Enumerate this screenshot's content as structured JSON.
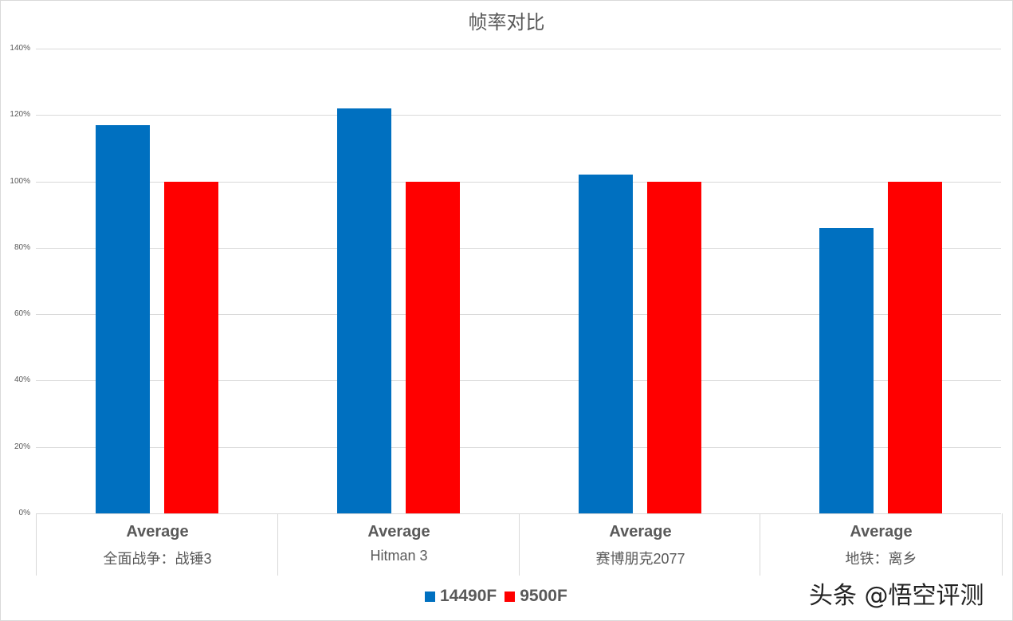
{
  "chart_data": {
    "type": "bar",
    "title": "帧率对比",
    "categories": [
      {
        "line1": "Average",
        "line2": "全面战争：战锤3"
      },
      {
        "line1": "Average",
        "line2": "Hitman 3"
      },
      {
        "line1": "Average",
        "line2": "赛博朋克2077"
      },
      {
        "line1": "Average",
        "line2": "地铁：离乡"
      }
    ],
    "series": [
      {
        "name": "14490F",
        "color": "#0070c0",
        "values": [
          117,
          122,
          102,
          86
        ]
      },
      {
        "name": "9500F",
        "color": "#ff0000",
        "values": [
          100,
          100,
          100,
          100
        ]
      }
    ],
    "yticks": [
      "0%",
      "20%",
      "40%",
      "60%",
      "80%",
      "100%",
      "120%",
      "140%"
    ],
    "ylim": [
      0,
      140
    ],
    "ylabel": "",
    "xlabel": "",
    "grid": true,
    "legend_position": "bottom"
  },
  "watermark": "头条 @悟空评测"
}
